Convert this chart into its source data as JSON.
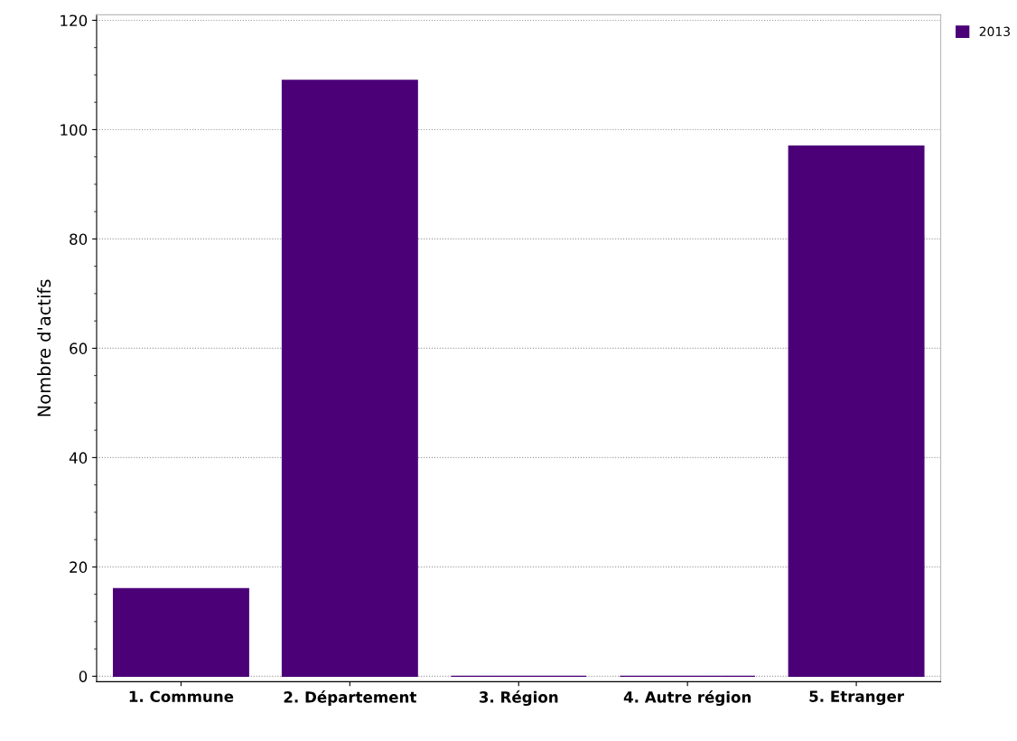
{
  "chart_data": {
    "type": "bar",
    "ylabel": "Nombre d'actifs",
    "categories": [
      "1. Commune",
      "2. Département",
      "3. Région",
      "4. Autre région",
      "5. Etranger"
    ],
    "series": [
      {
        "name": "2013",
        "color": "#4b0078",
        "values": [
          16,
          109,
          0,
          0,
          97
        ]
      }
    ],
    "ylim": [
      -1,
      121
    ],
    "yticks": [
      0,
      20,
      40,
      60,
      80,
      100,
      120
    ],
    "grid": "y",
    "legend": "top right"
  }
}
